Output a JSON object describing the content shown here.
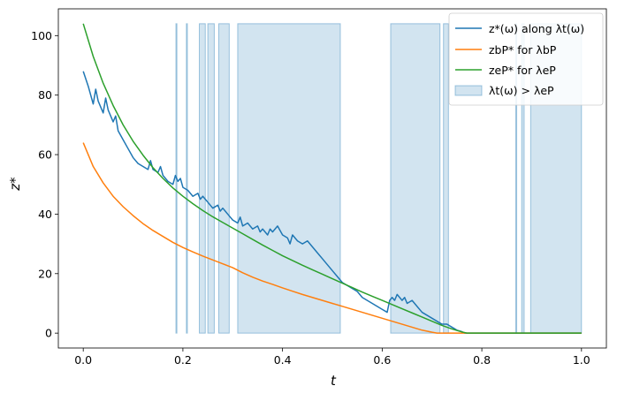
{
  "chart_data": {
    "type": "line",
    "xlabel": "t",
    "ylabel": "z*",
    "xlim": [
      -0.05,
      1.05
    ],
    "ylim": [
      -5,
      109
    ],
    "xticks": [
      {
        "value": 0.0,
        "label": "0.0"
      },
      {
        "value": 0.2,
        "label": "0.2"
      },
      {
        "value": 0.4,
        "label": "0.4"
      },
      {
        "value": 0.6,
        "label": "0.6"
      },
      {
        "value": 0.8,
        "label": "0.8"
      },
      {
        "value": 1.0,
        "label": "1.0"
      }
    ],
    "yticks": [
      {
        "value": 0,
        "label": "0"
      },
      {
        "value": 20,
        "label": "20"
      },
      {
        "value": 40,
        "label": "40"
      },
      {
        "value": 60,
        "label": "60"
      },
      {
        "value": 80,
        "label": "80"
      },
      {
        "value": 100,
        "label": "100"
      }
    ],
    "grid": false,
    "legend_position": "top-right",
    "series": [
      {
        "name": "z*(ω) along λt(ω)",
        "color": "#1f77b4",
        "x": [
          0.0,
          0.01,
          0.02,
          0.025,
          0.03,
          0.04,
          0.045,
          0.05,
          0.06,
          0.065,
          0.07,
          0.08,
          0.09,
          0.1,
          0.11,
          0.12,
          0.13,
          0.135,
          0.14,
          0.15,
          0.155,
          0.16,
          0.17,
          0.18,
          0.185,
          0.19,
          0.195,
          0.2,
          0.21,
          0.22,
          0.23,
          0.235,
          0.24,
          0.25,
          0.26,
          0.27,
          0.275,
          0.28,
          0.29,
          0.3,
          0.31,
          0.315,
          0.32,
          0.33,
          0.34,
          0.35,
          0.355,
          0.36,
          0.37,
          0.375,
          0.38,
          0.39,
          0.4,
          0.41,
          0.415,
          0.42,
          0.43,
          0.44,
          0.45,
          0.46,
          0.47,
          0.48,
          0.49,
          0.5,
          0.51,
          0.52,
          0.53,
          0.54,
          0.55,
          0.56,
          0.57,
          0.58,
          0.59,
          0.6,
          0.61,
          0.615,
          0.62,
          0.625,
          0.63,
          0.635,
          0.64,
          0.645,
          0.65,
          0.66,
          0.67,
          0.68,
          0.69,
          0.7,
          0.71,
          0.72,
          0.73,
          0.74,
          0.75,
          0.76,
          0.765,
          0.8,
          0.9,
          1.0
        ],
        "y": [
          88,
          83,
          77,
          82,
          78,
          74,
          79,
          75,
          71,
          73,
          68,
          65,
          62,
          59,
          57,
          56,
          55,
          58,
          55,
          54,
          56,
          53,
          51,
          50,
          53,
          51,
          52,
          49,
          48,
          46,
          47,
          45,
          46,
          44,
          42,
          43,
          41,
          42,
          40,
          38,
          37,
          39,
          36,
          37,
          35,
          36,
          34,
          35,
          33,
          35,
          34,
          36,
          33,
          32,
          30,
          33,
          31,
          30,
          31,
          29,
          27,
          25,
          23,
          21,
          19,
          17,
          16,
          15,
          14,
          12,
          11,
          10,
          9,
          8,
          7,
          11,
          12,
          11,
          13,
          12,
          11,
          12,
          10,
          11,
          9,
          7,
          6,
          5,
          4,
          3,
          3,
          2,
          1,
          0.5,
          0,
          0,
          0,
          0
        ]
      },
      {
        "name": "zbP* for λbP",
        "color": "#ff7f0e",
        "x": [
          0.0,
          0.02,
          0.04,
          0.06,
          0.08,
          0.1,
          0.12,
          0.14,
          0.16,
          0.18,
          0.2,
          0.22,
          0.24,
          0.26,
          0.28,
          0.3,
          0.32,
          0.34,
          0.36,
          0.38,
          0.4,
          0.42,
          0.44,
          0.46,
          0.48,
          0.5,
          0.52,
          0.54,
          0.56,
          0.58,
          0.6,
          0.62,
          0.64,
          0.66,
          0.68,
          0.7,
          0.71,
          0.75,
          0.8,
          0.9,
          1.0
        ],
        "y": [
          64,
          56,
          50.5,
          46,
          42.5,
          39.5,
          36.8,
          34.5,
          32.5,
          30.5,
          28.8,
          27.3,
          25.9,
          24.6,
          23.3,
          22,
          20.3,
          18.8,
          17.5,
          16.4,
          15.2,
          14.1,
          13,
          12,
          11,
          10,
          9,
          8,
          7,
          6,
          5,
          4,
          3,
          2,
          1,
          0.3,
          0,
          0,
          0,
          0,
          0
        ]
      },
      {
        "name": "zeP* for λeP",
        "color": "#2ca02c",
        "x": [
          0.0,
          0.02,
          0.04,
          0.06,
          0.08,
          0.1,
          0.12,
          0.14,
          0.16,
          0.18,
          0.2,
          0.22,
          0.24,
          0.26,
          0.28,
          0.3,
          0.32,
          0.34,
          0.36,
          0.38,
          0.4,
          0.42,
          0.44,
          0.46,
          0.48,
          0.5,
          0.52,
          0.54,
          0.56,
          0.58,
          0.6,
          0.62,
          0.64,
          0.66,
          0.68,
          0.7,
          0.72,
          0.74,
          0.76,
          0.77,
          0.8,
          0.9,
          1.0
        ],
        "y": [
          104,
          93,
          84,
          76.5,
          70,
          64.5,
          59.8,
          55.6,
          52,
          48.8,
          46,
          43.5,
          41.2,
          39.1,
          37.2,
          35.3,
          33.4,
          31.5,
          29.6,
          27.8,
          26,
          24.4,
          22.8,
          21.3,
          19.8,
          18.3,
          16.8,
          15.3,
          13.8,
          12.4,
          11,
          9.6,
          8.2,
          6.8,
          5.4,
          4,
          2.6,
          1.4,
          0.4,
          0,
          0,
          0,
          0
        ]
      }
    ],
    "shaded_region": {
      "name": "λt(ω) > λeP",
      "color": "#1f77b4",
      "ymin": 0,
      "ymax": 104,
      "intervals": [
        [
          0.186,
          0.188
        ],
        [
          0.207,
          0.209
        ],
        [
          0.233,
          0.245
        ],
        [
          0.25,
          0.263
        ],
        [
          0.272,
          0.293
        ],
        [
          0.31,
          0.516
        ],
        [
          0.617,
          0.716
        ],
        [
          0.723,
          0.733
        ],
        [
          0.868,
          0.87
        ],
        [
          0.88,
          0.885
        ],
        [
          0.898,
          1.0
        ]
      ]
    }
  }
}
